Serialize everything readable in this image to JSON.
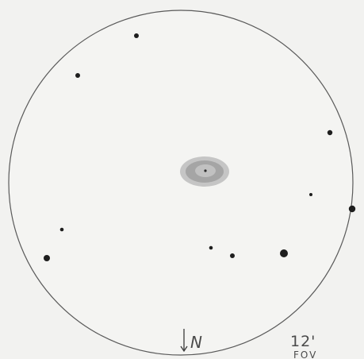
{
  "sketch": {
    "north_label": "N",
    "fov_label": "12'",
    "fov_sublabel": "FOV"
  },
  "colors": {
    "background": "#f2f2f0",
    "circle_stroke": "#5a5a5a",
    "star": "#1e1e1e",
    "nebula_outer": "#a8a8a8",
    "nebula_inner": "#8f8f8f",
    "text": "#4a4a4a"
  }
}
